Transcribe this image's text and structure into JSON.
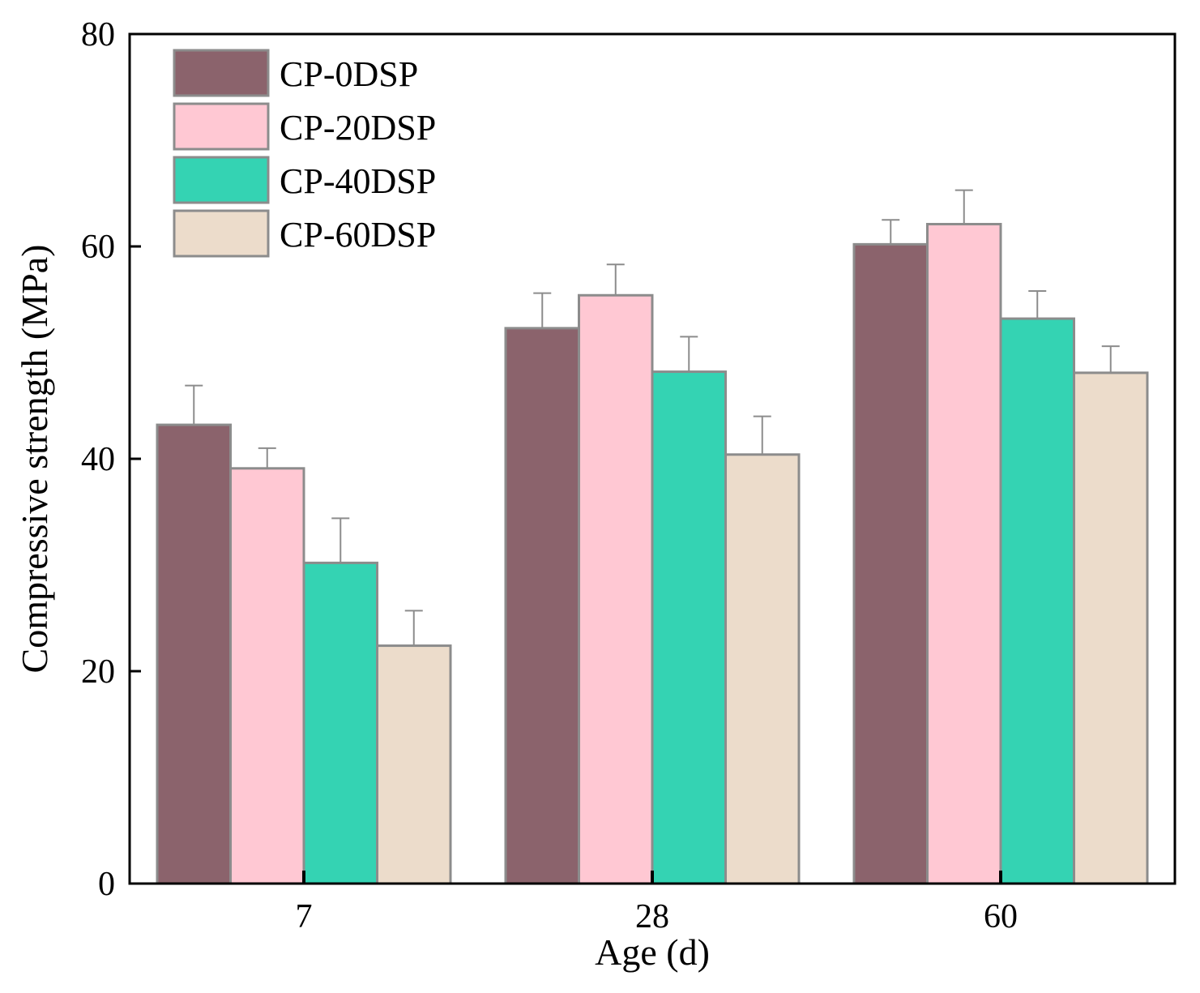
{
  "chart_data": {
    "type": "bar",
    "title": "",
    "xlabel": "Age (d)",
    "ylabel": "Compressive strength (MPa)",
    "ylim": [
      0,
      80
    ],
    "yticks": [
      0,
      20,
      40,
      60,
      80
    ],
    "categories": [
      "7",
      "28",
      "60"
    ],
    "legend_position": "top-left",
    "grid": false,
    "series": [
      {
        "name": "CP-0DSP",
        "color": "#8B636C",
        "values": [
          43.2,
          52.3,
          60.2
        ],
        "errors": [
          3.7,
          3.3,
          2.3
        ]
      },
      {
        "name": "CP-20DSP",
        "color": "#FFC8D3",
        "values": [
          39.1,
          55.4,
          62.1
        ],
        "errors": [
          1.9,
          2.9,
          3.2
        ]
      },
      {
        "name": "CP-40DSP",
        "color": "#34D3B3",
        "values": [
          30.2,
          48.2,
          53.2
        ],
        "errors": [
          4.2,
          3.3,
          2.6
        ]
      },
      {
        "name": "CP-60DSP",
        "color": "#ECDCCB",
        "values": [
          22.4,
          40.4,
          48.1
        ],
        "errors": [
          3.3,
          3.6,
          2.5
        ]
      }
    ]
  }
}
